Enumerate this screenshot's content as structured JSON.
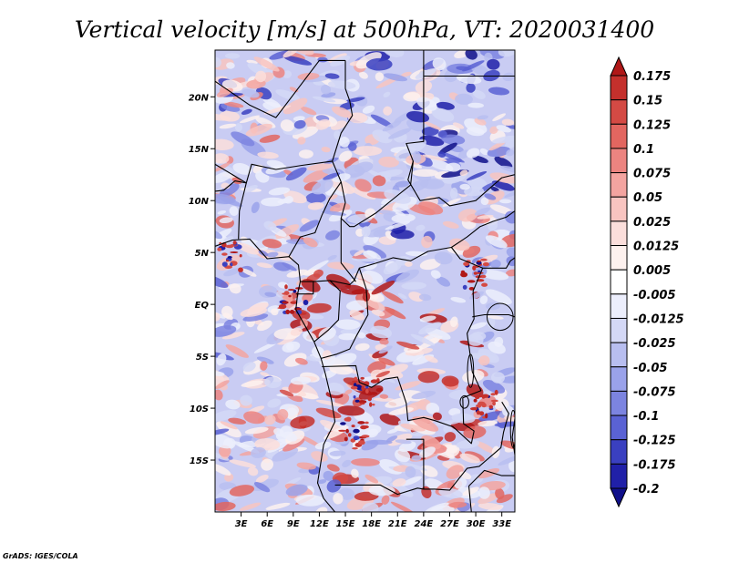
{
  "chart_data": {
    "type": "heatmap",
    "title": "Vertical velocity [m/s] at 500hPa, VT: 2020031400",
    "variable": "Vertical velocity",
    "units": "m/s",
    "level": "500hPa",
    "valid_time": "2020031400",
    "x_ticks": [
      "3E",
      "6E",
      "9E",
      "12E",
      "15E",
      "18E",
      "21E",
      "24E",
      "27E",
      "30E",
      "33E"
    ],
    "x_tick_values": [
      3,
      6,
      9,
      12,
      15,
      18,
      21,
      24,
      27,
      30,
      33
    ],
    "y_ticks": [
      "20N",
      "15N",
      "10N",
      "5N",
      "EQ",
      "5S",
      "10S",
      "15S"
    ],
    "y_tick_values": [
      20,
      15,
      10,
      5,
      0,
      -5,
      -10,
      -15
    ],
    "lon_range": [
      0,
      34.5
    ],
    "lat_range": [
      -20,
      24.5
    ],
    "colorbar": {
      "labels": [
        "0.175",
        "0.15",
        "0.125",
        "0.1",
        "0.075",
        "0.05",
        "0.025",
        "0.0125",
        "0.005",
        "-0.005",
        "-0.0125",
        "-0.025",
        "-0.05",
        "-0.075",
        "-0.1",
        "-0.125",
        "-0.175",
        "-0.2"
      ],
      "colors": [
        "#b01818",
        "#c4302c",
        "#d44a44",
        "#e26660",
        "#ec8480",
        "#f3a4a0",
        "#f8c4c0",
        "#fbdedb",
        "#fdf1ee",
        "#ffffff",
        "#eceefc",
        "#d4d8f6",
        "#b8bef0",
        "#9aa2ea",
        "#7c84e0",
        "#5a62d4",
        "#3a40c0",
        "#2020a8",
        "#10108a"
      ],
      "orientation": "vertical",
      "placement": "right"
    }
  },
  "credit": "GrADS: IGES/COLA"
}
